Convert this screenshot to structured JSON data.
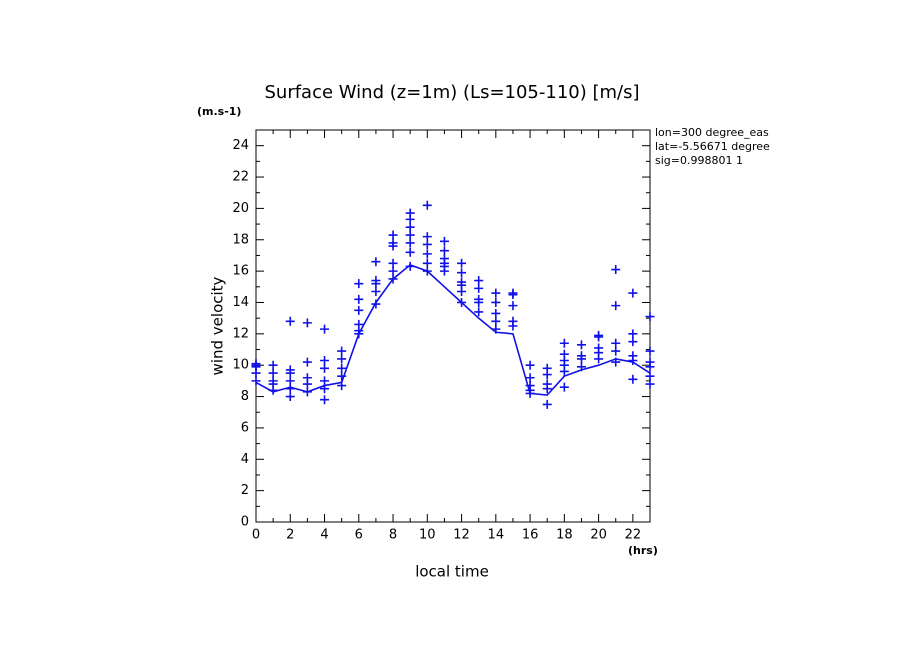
{
  "chart_data": {
    "type": "line",
    "title": "Surface Wind (z=1m) (Ls=105-110) [m/s]",
    "y_unit": "(m.s-1)",
    "x_unit": "(hrs)",
    "x_label": "local time",
    "y_label": "wind velocity",
    "annotations": [
      "lon=300 degree_eas",
      "lat=-5.56671 degree",
      "sig=0.998801 1"
    ],
    "xlim": [
      0,
      23
    ],
    "ylim": [
      0,
      25
    ],
    "xticks": [
      0,
      2,
      4,
      6,
      8,
      10,
      12,
      14,
      16,
      18,
      20,
      22
    ],
    "yticks": [
      0,
      2,
      4,
      6,
      8,
      10,
      12,
      14,
      16,
      18,
      20,
      22,
      24
    ],
    "xminorticks": [
      1,
      3,
      5,
      7,
      9,
      11,
      13,
      15,
      17,
      19,
      21,
      23
    ],
    "yminorticks": [
      1,
      3,
      5,
      7,
      9,
      11,
      13,
      15,
      17,
      19,
      21,
      23,
      25
    ],
    "series": [
      {
        "type": "line",
        "color": "#1010e8",
        "x": [
          0,
          1,
          2,
          3,
          4,
          5,
          6,
          7,
          8,
          9,
          10,
          11,
          12,
          13,
          14,
          15,
          16,
          17,
          18,
          19,
          20,
          21,
          22,
          23
        ],
        "values": [
          8.9,
          8.3,
          8.6,
          8.3,
          8.7,
          8.9,
          12.0,
          14.0,
          15.5,
          16.4,
          16.0,
          15.0,
          14.0,
          13.0,
          12.1,
          12.0,
          8.2,
          8.1,
          9.3,
          9.7,
          10.0,
          10.4,
          10.2,
          9.5
        ]
      },
      {
        "type": "scatter",
        "color": "#1010e8",
        "x": [
          0,
          0,
          0,
          0,
          0,
          1,
          1,
          1,
          1,
          1,
          2,
          2,
          2,
          2,
          2,
          2,
          3,
          3,
          3,
          3,
          3,
          4,
          4,
          4,
          4,
          4,
          4,
          5,
          5,
          5,
          5,
          5,
          6,
          6,
          6,
          6,
          6,
          6,
          7,
          7,
          7,
          7,
          7,
          8,
          8,
          8,
          8,
          8,
          8,
          9,
          9,
          9,
          9,
          9,
          9,
          9,
          10,
          10,
          10,
          10,
          10,
          10,
          11,
          11,
          11,
          11,
          11,
          11,
          12,
          12,
          12,
          12,
          12,
          12,
          13,
          13,
          13,
          13,
          13,
          14,
          14,
          14,
          14,
          14,
          15,
          15,
          15,
          15,
          15,
          16,
          16,
          16,
          16,
          16,
          17,
          17,
          17,
          17,
          17,
          18,
          18,
          18,
          18,
          18,
          18,
          19,
          19,
          19,
          19,
          20,
          20,
          20,
          20,
          20,
          21,
          21,
          21,
          21,
          21,
          22,
          22,
          22,
          22,
          22,
          22,
          23,
          23,
          23,
          23,
          23,
          23
        ],
        "values": [
          10.0,
          9.9,
          10.1,
          9.5,
          9.0,
          10.0,
          9.5,
          9.0,
          8.8,
          8.4,
          12.8,
          9.7,
          9.5,
          9.0,
          8.5,
          8.0,
          12.7,
          10.2,
          9.2,
          8.8,
          8.3,
          12.3,
          10.3,
          9.8,
          9.0,
          8.5,
          7.8,
          10.9,
          10.4,
          9.8,
          9.3,
          8.7,
          15.2,
          14.2,
          13.5,
          12.6,
          12.2,
          12.0,
          16.6,
          15.4,
          15.2,
          14.7,
          13.9,
          18.3,
          17.8,
          17.6,
          16.5,
          16.0,
          15.5,
          19.7,
          19.3,
          18.8,
          18.3,
          17.8,
          17.2,
          16.3,
          20.2,
          18.2,
          17.7,
          17.1,
          16.5,
          16.0,
          17.9,
          17.3,
          16.8,
          16.5,
          16.3,
          16.0,
          16.5,
          15.9,
          15.3,
          15.1,
          14.7,
          14.0,
          15.4,
          14.9,
          14.2,
          14.0,
          13.4,
          14.6,
          14.0,
          13.3,
          12.8,
          12.3,
          14.6,
          14.5,
          13.8,
          12.8,
          12.5,
          10.0,
          9.2,
          8.7,
          8.4,
          8.2,
          9.8,
          9.4,
          8.8,
          8.5,
          7.5,
          11.4,
          10.7,
          10.3,
          10.0,
          9.6,
          8.6,
          11.3,
          10.6,
          10.4,
          9.9,
          11.9,
          11.8,
          11.1,
          10.8,
          10.4,
          16.1,
          13.8,
          11.4,
          10.9,
          10.2,
          14.6,
          12.0,
          11.5,
          10.6,
          10.3,
          9.1,
          13.1,
          10.9,
          10.2,
          9.9,
          9.3,
          8.8
        ]
      }
    ]
  }
}
